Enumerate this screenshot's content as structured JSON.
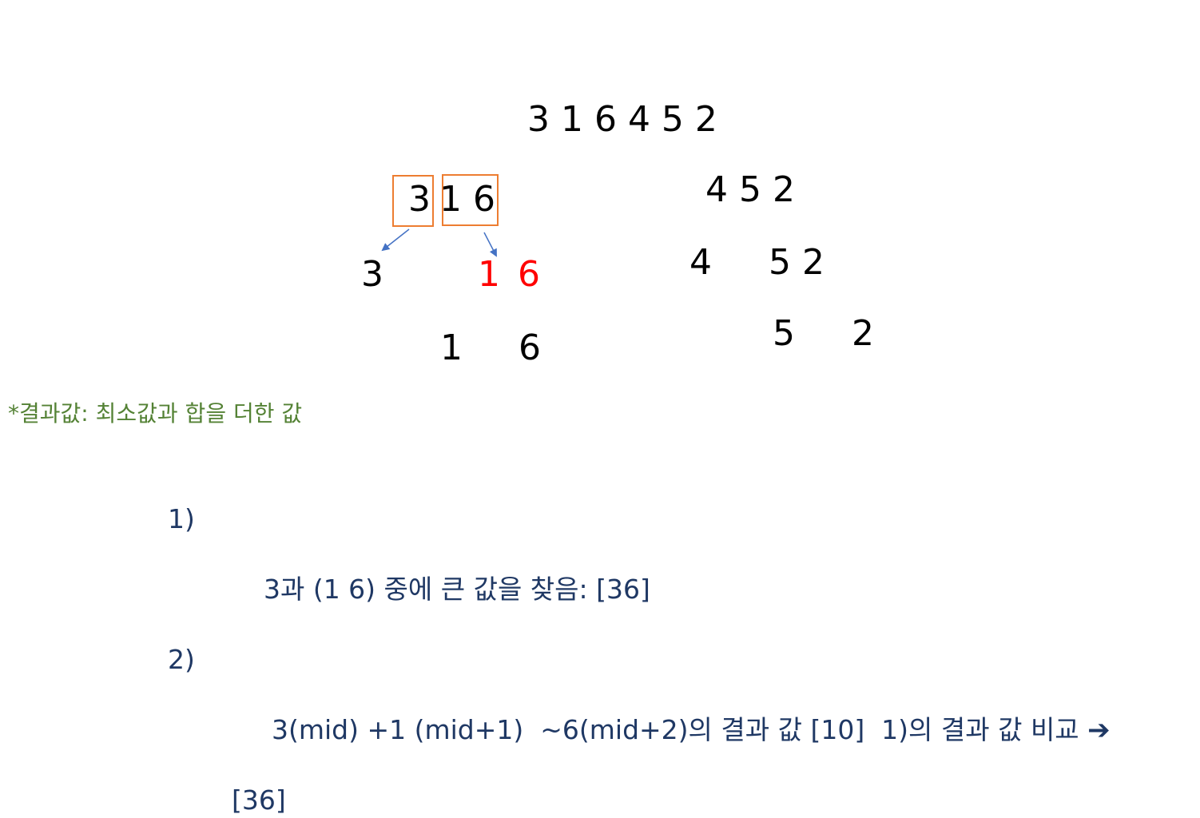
{
  "tree": {
    "root": "3 1 6 4 5 2",
    "left_group_a": "3",
    "left_group_b": "1 6",
    "right_level1": "4 5 2",
    "left_l2_a": "3",
    "left_l2_b1": "1",
    "left_l2_b2": "6",
    "right_l2_a": "4",
    "right_l2_b": "5 2",
    "left_l3_a": "1",
    "left_l3_b": "6",
    "right_l3_a": "5",
    "right_l3_b": "2"
  },
  "colors": {
    "box_border": "#ed7d31",
    "arrow": "#4472c4",
    "highlight": "#ff0000",
    "note": "#548235",
    "steps": "#1f3864"
  },
  "note": "*결과값: 최소값과 합을 더한 값",
  "steps": [
    {
      "num": "1)",
      "text": "3과 (1 6) 중에 큰 값을 찾음: [36]"
    },
    {
      "num": "2)",
      "text": "3(mid) +1 (mid+1)  ~6(mid+2)의 결과 값 [10]  1)의 결과 값 비교 ",
      "continuation": "[36]"
    }
  ],
  "icons": {
    "step_arrow": "heavy-right-arrow-icon"
  }
}
